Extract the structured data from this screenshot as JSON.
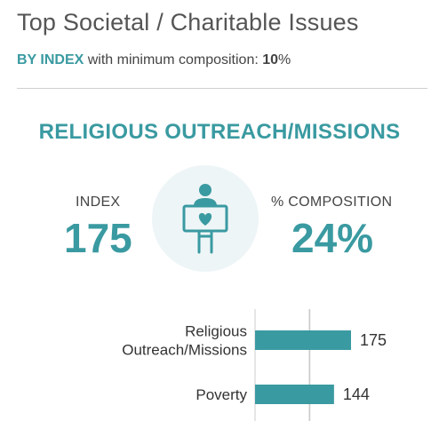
{
  "header": {
    "title": "Top Societal / Charitable Issues",
    "subtitle_highlight": "BY INDEX",
    "subtitle_text": "with minimum composition:",
    "subtitle_number": "10",
    "subtitle_unit": "%"
  },
  "featured": {
    "issue": "RELIGIOUS OUTREACH/MISSIONS",
    "index_label": "INDEX",
    "index_value": "175",
    "composition_label": "% COMPOSITION",
    "composition_value": "24%",
    "icon": "person-holding-heart-sign-icon"
  },
  "colors": {
    "accent": "#3a9aa1",
    "bar": "#3a9aa1",
    "circle_bg": "#eef5f7",
    "gridline": "#cccccc"
  },
  "chart_data": {
    "type": "bar",
    "orientation": "horizontal",
    "categories": [
      [
        "Religious",
        "Outreach/Missions"
      ],
      [
        "Poverty"
      ]
    ],
    "values": [
      175,
      144
    ],
    "data_labels": [
      "175",
      "144"
    ],
    "gridlines": [
      100,
      175
    ],
    "xlim": [
      0,
      175
    ],
    "title": "",
    "xlabel": "",
    "ylabel": ""
  }
}
